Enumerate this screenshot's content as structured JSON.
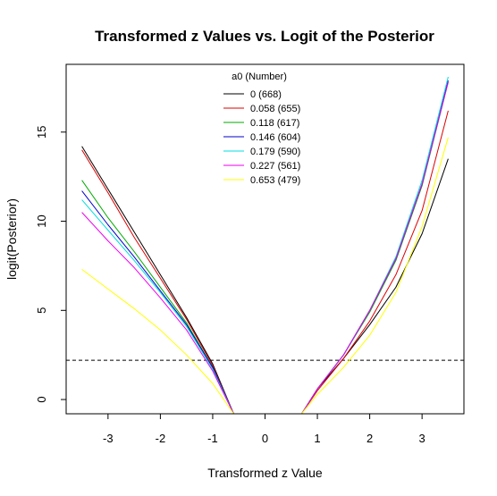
{
  "chart_data": {
    "type": "line",
    "title": "Transformed z Values vs. Logit of the Posterior",
    "xlabel": "Transformed z Value",
    "ylabel": "logit(Posterior)",
    "xlim": [
      -3.8,
      3.8
    ],
    "ylim": [
      -0.8,
      18.8
    ],
    "x_ticks": [
      -3,
      -2,
      -1,
      0,
      1,
      2,
      3
    ],
    "y_ticks": [
      0,
      5,
      10,
      15
    ],
    "grid": false,
    "legend": {
      "title": "a0 (Number)",
      "position": "top-center"
    },
    "reference_line": {
      "y": 2.2,
      "style": "dashed",
      "color": "#000000"
    },
    "series": [
      {
        "name": "0 (668)",
        "color": "#000000",
        "left": [
          [
            -3.5,
            14.2
          ],
          [
            -3.0,
            11.8
          ],
          [
            -2.5,
            9.4
          ],
          [
            -2.0,
            7.0
          ],
          [
            -1.5,
            4.6
          ],
          [
            -1.0,
            2.0
          ],
          [
            -0.6,
            -0.8
          ]
        ],
        "right": [
          [
            0.7,
            -0.8
          ],
          [
            1.0,
            0.6
          ],
          [
            1.5,
            2.3
          ],
          [
            2.0,
            4.2
          ],
          [
            2.5,
            6.3
          ],
          [
            3.0,
            9.3
          ],
          [
            3.5,
            13.5
          ]
        ]
      },
      {
        "name": "0.058 (655)",
        "color": "#dd0000",
        "left": [
          [
            -3.5,
            14.0
          ],
          [
            -3.0,
            11.6
          ],
          [
            -2.5,
            9.1
          ],
          [
            -2.0,
            6.8
          ],
          [
            -1.5,
            4.5
          ],
          [
            -1.0,
            1.9
          ],
          [
            -0.6,
            -0.8
          ]
        ],
        "right": [
          [
            0.7,
            -0.8
          ],
          [
            1.0,
            0.5
          ],
          [
            1.5,
            2.3
          ],
          [
            2.0,
            4.4
          ],
          [
            2.5,
            7.0
          ],
          [
            3.0,
            10.6
          ],
          [
            3.5,
            16.2
          ]
        ]
      },
      {
        "name": "0.118 (617)",
        "color": "#00aa00",
        "left": [
          [
            -3.5,
            12.3
          ],
          [
            -3.0,
            10.2
          ],
          [
            -2.5,
            8.3
          ],
          [
            -2.0,
            6.3
          ],
          [
            -1.5,
            4.3
          ],
          [
            -1.0,
            1.8
          ],
          [
            -0.6,
            -0.8
          ]
        ],
        "right": [
          [
            0.7,
            -0.8
          ],
          [
            1.0,
            0.6
          ],
          [
            1.5,
            2.5
          ],
          [
            2.0,
            4.9
          ],
          [
            2.5,
            7.8
          ],
          [
            3.0,
            12.0
          ],
          [
            3.5,
            17.8
          ]
        ]
      },
      {
        "name": "0.146 (604)",
        "color": "#0000cc",
        "left": [
          [
            -3.5,
            11.7
          ],
          [
            -3.0,
            9.8
          ],
          [
            -2.5,
            8.0
          ],
          [
            -2.0,
            6.1
          ],
          [
            -1.5,
            4.2
          ],
          [
            -1.0,
            1.8
          ],
          [
            -0.6,
            -0.8
          ]
        ],
        "right": [
          [
            0.7,
            -0.8
          ],
          [
            1.0,
            0.6
          ],
          [
            1.5,
            2.5
          ],
          [
            2.0,
            5.0
          ],
          [
            2.5,
            7.9
          ],
          [
            3.0,
            12.1
          ],
          [
            3.5,
            17.9
          ]
        ]
      },
      {
        "name": "0.179 (590)",
        "color": "#00dddd",
        "left": [
          [
            -3.5,
            11.2
          ],
          [
            -3.0,
            9.5
          ],
          [
            -2.5,
            7.8
          ],
          [
            -2.0,
            6.0
          ],
          [
            -1.5,
            4.1
          ],
          [
            -1.0,
            1.7
          ],
          [
            -0.6,
            -0.8
          ]
        ],
        "right": [
          [
            0.7,
            -0.8
          ],
          [
            1.0,
            0.6
          ],
          [
            1.5,
            2.5
          ],
          [
            2.0,
            5.0
          ],
          [
            2.5,
            8.0
          ],
          [
            3.0,
            12.3
          ],
          [
            3.5,
            18.1
          ]
        ]
      },
      {
        "name": "0.227 (561)",
        "color": "#ee00ee",
        "left": [
          [
            -3.5,
            10.5
          ],
          [
            -3.0,
            8.9
          ],
          [
            -2.5,
            7.4
          ],
          [
            -2.0,
            5.7
          ],
          [
            -1.5,
            3.9
          ],
          [
            -1.0,
            1.6
          ],
          [
            -0.6,
            -0.8
          ]
        ],
        "right": [
          [
            0.7,
            -0.8
          ],
          [
            1.0,
            0.6
          ],
          [
            1.5,
            2.5
          ],
          [
            2.0,
            5.0
          ],
          [
            2.5,
            7.9
          ],
          [
            3.0,
            12.1
          ],
          [
            3.5,
            17.8
          ]
        ]
      },
      {
        "name": "0.653 (479)",
        "color": "#ffff00",
        "left": [
          [
            -3.5,
            7.3
          ],
          [
            -3.0,
            6.2
          ],
          [
            -2.5,
            5.1
          ],
          [
            -2.0,
            3.9
          ],
          [
            -1.5,
            2.5
          ],
          [
            -1.0,
            0.9
          ],
          [
            -0.6,
            -0.8
          ]
        ],
        "right": [
          [
            0.7,
            -0.8
          ],
          [
            1.0,
            0.3
          ],
          [
            1.5,
            1.8
          ],
          [
            2.0,
            3.6
          ],
          [
            2.5,
            6.0
          ],
          [
            3.0,
            9.7
          ],
          [
            3.5,
            14.7
          ]
        ]
      }
    ]
  }
}
